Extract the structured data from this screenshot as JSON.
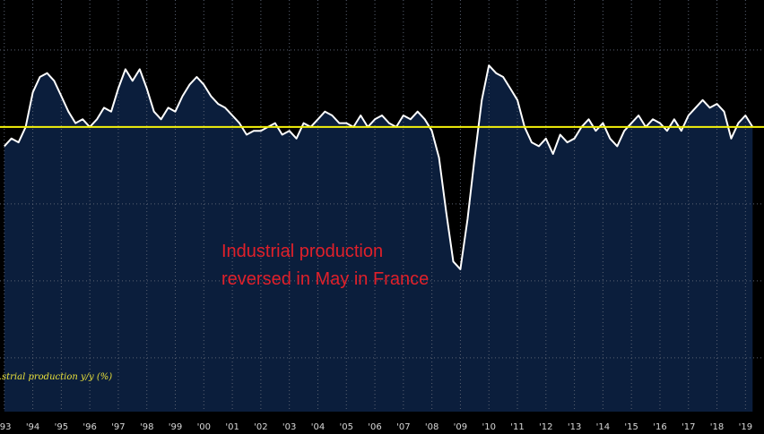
{
  "chart_data": {
    "type": "area",
    "title": "",
    "xlabel": "",
    "ylabel": "",
    "x_tick_labels": [
      "'93",
      "'94",
      "'95",
      "'96",
      "'97",
      "'98",
      "'99",
      "'00",
      "'01",
      "'02",
      "'03",
      "'04",
      "'05",
      "'06",
      "'07",
      "'08",
      "'09",
      "'10",
      "'11",
      "'12",
      "'13",
      "'14",
      "'15",
      "'16",
      "'17",
      "'18",
      "'19"
    ],
    "series": [
      {
        "name": "…strial production y/y (%)",
        "x": [
          1993.0,
          1993.25,
          1993.5,
          1993.75,
          1994.0,
          1994.25,
          1994.5,
          1994.75,
          1995.0,
          1995.25,
          1995.5,
          1995.75,
          1996.0,
          1996.25,
          1996.5,
          1996.75,
          1997.0,
          1997.25,
          1997.5,
          1997.75,
          1998.0,
          1998.25,
          1998.5,
          1998.75,
          1999.0,
          1999.25,
          1999.5,
          1999.75,
          2000.0,
          2000.25,
          2000.5,
          2000.75,
          2001.0,
          2001.25,
          2001.5,
          2001.75,
          2002.0,
          2002.25,
          2002.5,
          2002.75,
          2003.0,
          2003.25,
          2003.5,
          2003.75,
          2004.0,
          2004.25,
          2004.5,
          2004.75,
          2005.0,
          2005.25,
          2005.5,
          2005.75,
          2006.0,
          2006.25,
          2006.5,
          2006.75,
          2007.0,
          2007.25,
          2007.5,
          2007.75,
          2008.0,
          2008.25,
          2008.5,
          2008.75,
          2009.0,
          2009.25,
          2009.5,
          2009.75,
          2010.0,
          2010.25,
          2010.5,
          2010.75,
          2011.0,
          2011.25,
          2011.5,
          2011.75,
          2012.0,
          2012.25,
          2012.5,
          2012.75,
          2013.0,
          2013.25,
          2013.5,
          2013.75,
          2014.0,
          2014.25,
          2014.5,
          2014.75,
          2015.0,
          2015.25,
          2015.5,
          2015.75,
          2016.0,
          2016.25,
          2016.5,
          2016.75,
          2017.0,
          2017.25,
          2017.5,
          2017.75,
          2018.0,
          2018.25,
          2018.5,
          2018.75,
          2019.0,
          2019.25
        ],
        "y": [
          -2.5,
          -1.5,
          -2.0,
          0.0,
          4.5,
          6.5,
          7.0,
          6.0,
          4.0,
          2.0,
          0.5,
          1.0,
          0.0,
          1.0,
          2.5,
          2.0,
          5.0,
          7.5,
          6.0,
          7.5,
          5.0,
          2.0,
          1.0,
          2.5,
          2.0,
          4.0,
          5.5,
          6.5,
          5.5,
          4.0,
          3.0,
          2.5,
          1.5,
          0.5,
          -1.0,
          -0.5,
          -0.5,
          0.0,
          0.5,
          -1.0,
          -0.5,
          -1.5,
          0.5,
          0.0,
          1.0,
          2.0,
          1.5,
          0.5,
          0.5,
          0.0,
          1.5,
          0.0,
          1.0,
          1.5,
          0.5,
          0.0,
          1.5,
          1.0,
          2.0,
          1.0,
          -0.5,
          -4.0,
          -11.0,
          -17.5,
          -18.5,
          -12.0,
          -4.0,
          3.5,
          8.0,
          7.0,
          6.5,
          5.0,
          3.5,
          0.0,
          -2.0,
          -2.5,
          -1.5,
          -3.5,
          -1.0,
          -2.0,
          -1.5,
          0.0,
          1.0,
          -0.5,
          0.5,
          -1.5,
          -2.5,
          -0.5,
          0.5,
          1.5,
          0.0,
          1.0,
          0.5,
          -0.5,
          1.0,
          -0.5,
          1.5,
          2.5,
          3.5,
          2.5,
          3.0,
          2.0,
          -1.5,
          0.5,
          1.5,
          0.0
        ],
        "color": "#ffffff"
      }
    ],
    "reference_line": {
      "value": 0,
      "color": "#f5f20a"
    },
    "xlim": [
      1992.85,
      2019.65
    ],
    "ylim": [
      -37,
      16.5
    ],
    "grid": true,
    "area_fill": "#0b1e3c",
    "background": "#000000",
    "annotation": {
      "lines": [
        "Industrial production",
        "reversed in May in France"
      ],
      "color": "#e0202a"
    },
    "series_label_color": "#e8e03a"
  }
}
